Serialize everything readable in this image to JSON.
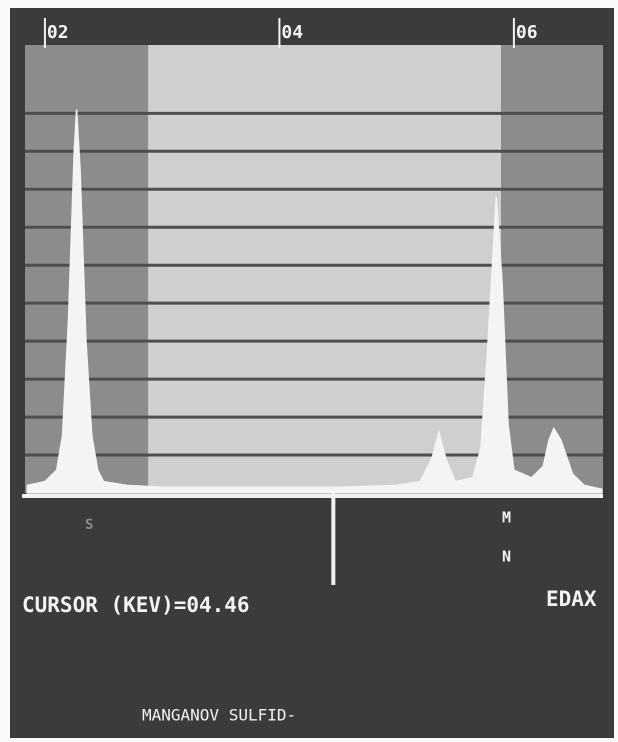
{
  "chart_data": {
    "type": "area",
    "color": "#f4f4f4",
    "x": [
      1.85,
      2.0,
      2.1,
      2.15,
      2.2,
      2.25,
      2.27,
      2.3,
      2.35,
      2.4,
      2.45,
      2.5,
      2.7,
      3.0,
      3.5,
      4.0,
      4.5,
      5.0,
      5.2,
      5.3,
      5.36,
      5.42,
      5.5,
      5.65,
      5.72,
      5.78,
      5.85,
      5.9,
      5.95,
      6.0,
      6.15,
      6.25,
      6.3,
      6.34,
      6.4,
      6.5,
      6.6,
      6.75
    ],
    "values": [
      0.2,
      0.3,
      0.6,
      1.5,
      4.5,
      9.0,
      10.1,
      8.5,
      4.0,
      1.5,
      0.6,
      0.3,
      0.2,
      0.15,
      0.15,
      0.15,
      0.15,
      0.2,
      0.3,
      0.9,
      1.6,
      0.9,
      0.3,
      0.4,
      1.2,
      4.0,
      7.8,
      5.5,
      1.8,
      0.6,
      0.4,
      0.7,
      1.4,
      1.7,
      1.4,
      0.5,
      0.2,
      0.1
    ],
    "xlim": [
      1.83,
      6.76
    ],
    "xticks": [
      {
        "value": 2,
        "label": "02"
      },
      {
        "value": 4,
        "label": "04"
      },
      {
        "value": 6,
        "label": "06"
      }
    ],
    "ylim": [
      0,
      11.8
    ],
    "yticks": [
      1,
      2,
      3,
      4,
      5,
      6,
      7,
      8,
      9,
      10
    ],
    "grid": true,
    "window": [
      2.88,
      5.89
    ],
    "cursor": 4.46,
    "cursor_label": "CURSOR (KEV)=04.46",
    "peak_labels": [
      "S",
      "M",
      "N"
    ],
    "brand": "EDAX",
    "caption": "MANGANOV SULFID-"
  }
}
